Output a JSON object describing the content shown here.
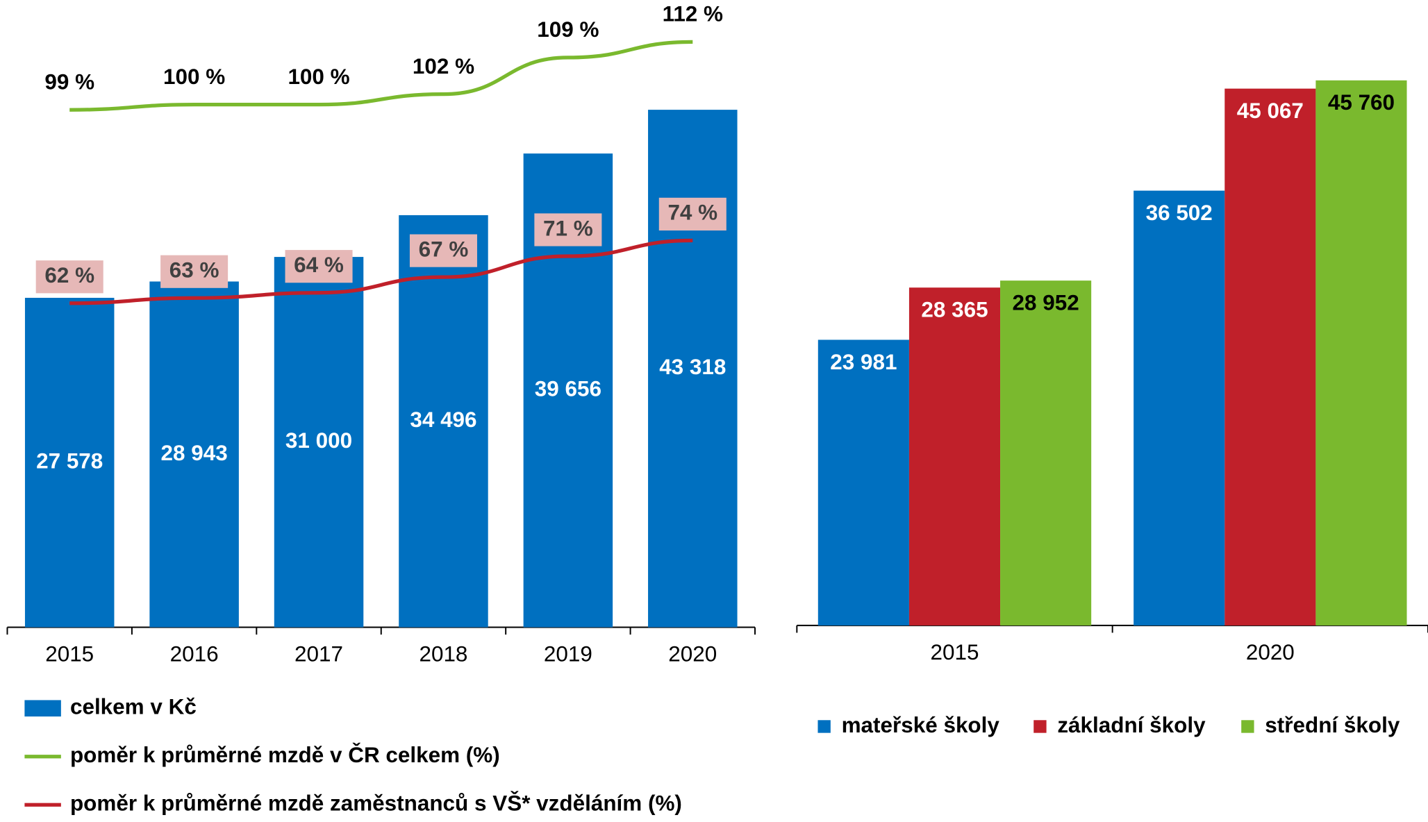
{
  "chart_data": [
    {
      "type": "bar",
      "categories": [
        "2015",
        "2016",
        "2017",
        "2018",
        "2019",
        "2020"
      ],
      "ylim": [
        0,
        52500
      ],
      "y2lim": [
        0,
        120
      ],
      "series": [
        {
          "name": "celkem v Kč",
          "type": "bar",
          "color": "#0070c0",
          "values": [
            27578,
            28943,
            31000,
            34496,
            39656,
            43318
          ],
          "value_labels": [
            "27 578",
            "28 943",
            "31 000",
            "34 496",
            "39 656",
            "43 318"
          ]
        },
        {
          "name": "poměr k průměrné mzdě v ČR celkem (%)",
          "type": "line",
          "axis": "y2",
          "color": "#7ab92e",
          "values": [
            99,
            100,
            100,
            102,
            109,
            112
          ],
          "value_labels": [
            "99 %",
            "100 %",
            "100 %",
            "102 %",
            "109 %",
            "112 %"
          ]
        },
        {
          "name": "poměr k průměrné mzdě zaměstnanců s VŠ* vzděláním (%)",
          "type": "line",
          "axis": "y2",
          "color": "#c0202a",
          "values": [
            62,
            63,
            64,
            67,
            71,
            74
          ],
          "value_labels": [
            "62 %",
            "63 %",
            "64 %",
            "67 %",
            "71 %",
            "74 %"
          ]
        }
      ]
    },
    {
      "type": "bar",
      "categories": [
        "2015",
        "2020"
      ],
      "ylim": [
        0,
        52500
      ],
      "series": [
        {
          "name": "mateřské školy",
          "color": "#0070c0",
          "values": [
            23981,
            36502
          ],
          "value_labels": [
            "23 981",
            "36 502"
          ]
        },
        {
          "name": "základní školy",
          "color": "#c0202a",
          "values": [
            28365,
            45067
          ],
          "value_labels": [
            "28 365",
            "45 067"
          ]
        },
        {
          "name": "střední školy",
          "color": "#7ab92e",
          "values": [
            28952,
            45760
          ],
          "value_labels": [
            "28 952",
            "45 760"
          ]
        }
      ]
    }
  ]
}
